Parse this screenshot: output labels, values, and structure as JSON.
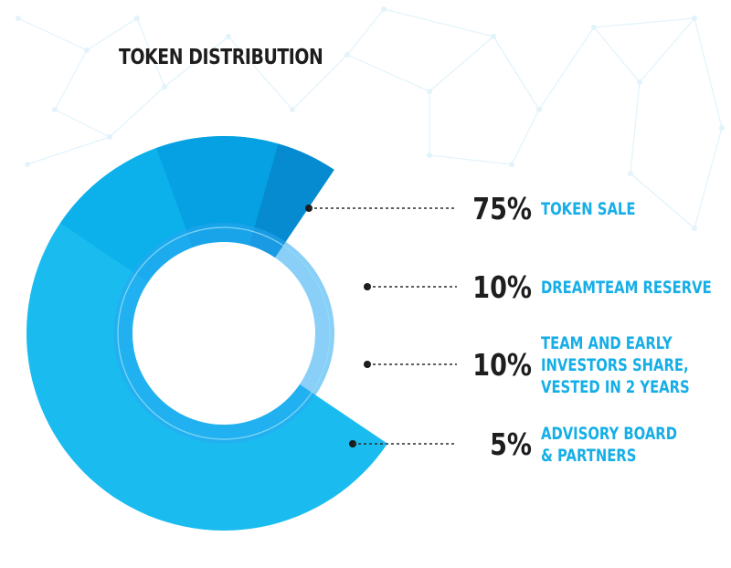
{
  "title": "TOKEN DISTRIBUTION",
  "colors": {
    "token_sale": "#1abcf0",
    "dreamteam_reserve": "#0cb0eb",
    "team_early_investors": "#05a1e2",
    "advisory_board": "#068bd0",
    "inner_ring": "#2aa7f0",
    "label_text": "#16aee6",
    "percent_text": "#1e1e1e",
    "background_pattern": "#e2f3fb"
  },
  "chart_data": {
    "type": "pie",
    "variant": "donut",
    "title": "TOKEN DISTRIBUTION",
    "slices": [
      {
        "value": 75,
        "percent_label": "75%",
        "label_lines": [
          "TOKEN SALE"
        ],
        "color": "#1abcf0"
      },
      {
        "value": 10,
        "percent_label": "10%",
        "label_lines": [
          "DREAMTEAM RESERVE"
        ],
        "color": "#0cb0eb"
      },
      {
        "value": 10,
        "percent_label": "10%",
        "label_lines": [
          "TEAM AND EARLY",
          "INVESTORS SHARE,",
          "VESTED IN 2 YEARS"
        ],
        "color": "#05a1e2"
      },
      {
        "value": 5,
        "percent_label": "5%",
        "label_lines": [
          "ADVISORY BOARD",
          "& PARTNERS"
        ],
        "color": "#068bd0"
      }
    ]
  }
}
